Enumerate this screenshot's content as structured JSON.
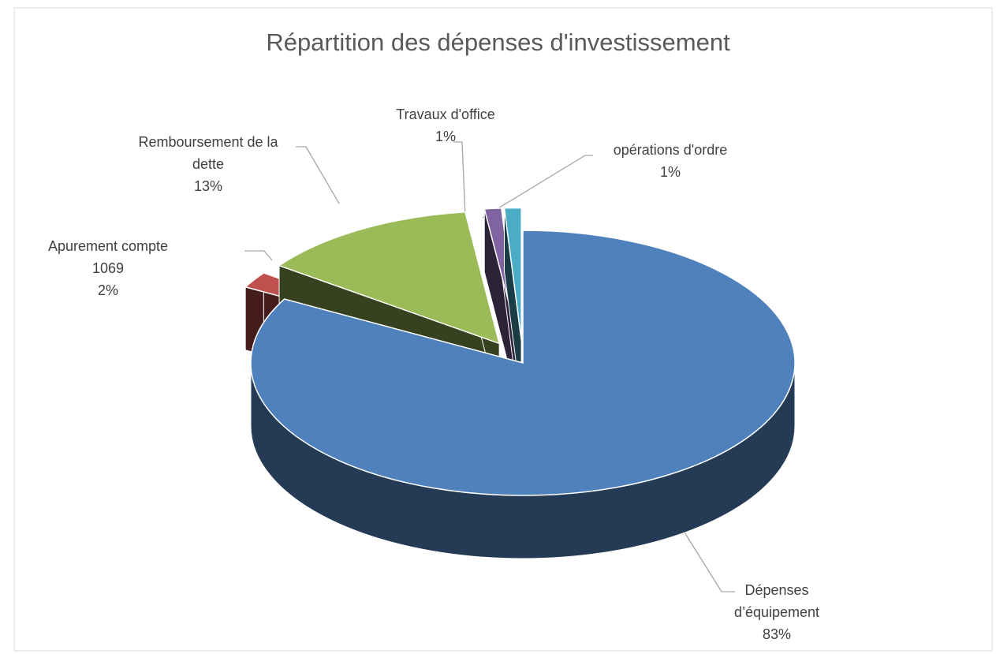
{
  "chart_data": {
    "type": "pie",
    "title": "Répartition des dépenses d'investissement",
    "categories": [
      "Dépenses d’équipement",
      "Apurement compte 1069",
      "Remboursement de la dette",
      "Travaux d'office",
      "opérations d'ordre"
    ],
    "values": [
      83,
      2,
      13,
      1,
      1
    ],
    "value_labels": [
      "83%",
      "2%",
      "13%",
      "1%",
      "1%"
    ],
    "colors": [
      "#4f81bd",
      "#c0504d",
      "#9bbb59",
      "#8064a2",
      "#4bacc6"
    ]
  }
}
